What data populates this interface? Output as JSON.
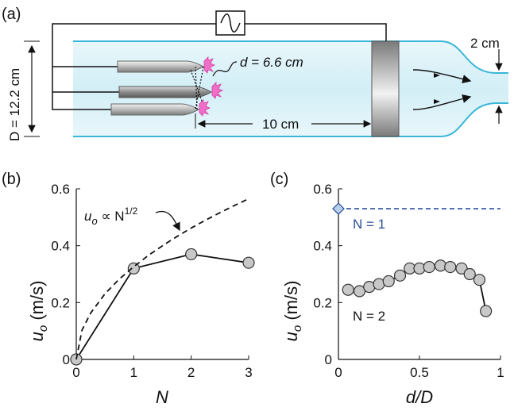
{
  "panels": {
    "a": {
      "label": "(a)",
      "diameter_label": "D = 12.2 cm",
      "spacing_label": "d = 6.6 cm",
      "distance_label": "10 cm",
      "outlet_label": "2 cm",
      "colors": {
        "pipe_edge": "#38b6d8",
        "pipe_fill": "#dff3f8",
        "emitter": "#f06fc6",
        "wire": "#111111"
      },
      "icons": [
        "sine-wave-generator-icon",
        "electrode-needle-icon",
        "mesh-electrode-icon",
        "flow-arrow-icon"
      ]
    },
    "b": {
      "label": "(b)",
      "annotation": "u_o ∝ N^1/2",
      "annotation_var": "u",
      "annotation_sub": "o",
      "annotation_mid": " ∝ N",
      "annotation_sup": "1/2",
      "ylabel_var": "u",
      "ylabel_sub": "o",
      "ylabel_unit": " (m/s)",
      "xlabel": "N"
    },
    "c": {
      "label": "(c)",
      "ylabel_var": "u",
      "ylabel_sub": "o",
      "ylabel_unit": " (m/s)",
      "xlabel": "d/D",
      "n1_label": "N = 1",
      "n2_label": "N = 2"
    }
  },
  "chart_data": [
    {
      "type": "line",
      "panel": "b",
      "xlabel": "N",
      "ylabel": "u_o (m/s)",
      "xlim": [
        0,
        3
      ],
      "ylim": [
        0,
        0.6
      ],
      "xticks": [
        "0",
        "1",
        "2",
        "3"
      ],
      "yticks": [
        "0",
        "0.2",
        "0.4",
        "0.6"
      ],
      "series": [
        {
          "name": "",
          "style": "solid-markers",
          "x": [
            0,
            1,
            2,
            3
          ],
          "y": [
            0,
            0.32,
            0.37,
            0.34
          ]
        },
        {
          "name": "u_o ∝ N^1/2",
          "style": "dashed",
          "x": [
            0,
            0.1,
            0.25,
            0.5,
            0.75,
            1,
            1.25,
            1.5,
            1.75,
            2,
            2.25,
            2.5,
            2.75,
            3
          ],
          "y": [
            0,
            0.103,
            0.163,
            0.231,
            0.283,
            0.326,
            0.365,
            0.4,
            0.432,
            0.462,
            0.49,
            0.516,
            0.541,
            0.565
          ]
        }
      ],
      "colors": {
        "line": "#000000",
        "marker_fill": "#c8c8c8"
      }
    },
    {
      "type": "scatter",
      "panel": "c",
      "xlabel": "d/D",
      "ylabel": "u_o (m/s)",
      "xlim": [
        0,
        1
      ],
      "ylim": [
        0,
        0.6
      ],
      "xticks": [
        "0",
        "0.5",
        "1"
      ],
      "yticks": [
        "0",
        "0.2",
        "0.4",
        "0.6"
      ],
      "series": [
        {
          "name": "N = 1",
          "style": "dashed-hline",
          "x": [
            0,
            1
          ],
          "y": [
            0.53,
            0.53
          ]
        },
        {
          "name": "N = 2",
          "style": "solid-markers",
          "x": [
            0.06,
            0.13,
            0.19,
            0.25,
            0.31,
            0.38,
            0.44,
            0.5,
            0.56,
            0.63,
            0.69,
            0.76,
            0.81,
            0.87,
            0.91
          ],
          "y": [
            0.245,
            0.24,
            0.255,
            0.265,
            0.275,
            0.295,
            0.32,
            0.32,
            0.325,
            0.33,
            0.325,
            0.32,
            0.3,
            0.28,
            0.17
          ]
        }
      ],
      "colors": {
        "n1": "#2a4e96",
        "n1_marker": "#b8cfe8",
        "n2_line": "#000000",
        "marker_fill": "#c8c8c8"
      }
    }
  ]
}
